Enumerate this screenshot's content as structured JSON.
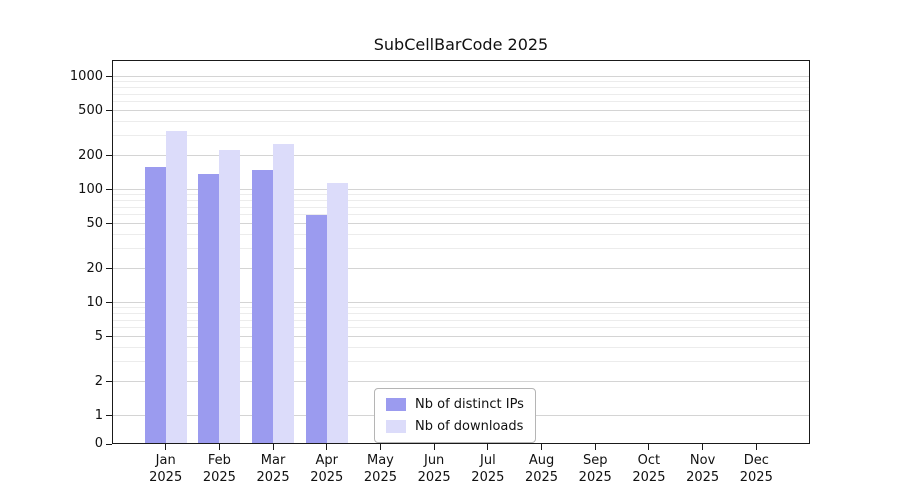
{
  "figure": {
    "title": "SubCellBarCode 2025"
  },
  "chart_data": {
    "type": "bar",
    "title": "SubCellBarCode 2025",
    "categories": [
      "Jan",
      "Feb",
      "Mar",
      "Apr",
      "May",
      "Jun",
      "Jul",
      "Aug",
      "Sep",
      "Oct",
      "Nov",
      "Dec"
    ],
    "x_tick_line2": "2025",
    "series": [
      {
        "name": "Nb of distinct IPs",
        "color": "#9b9bef",
        "values": [
          160,
          138,
          150,
          60,
          0,
          0,
          0,
          0,
          0,
          0,
          0,
          0
        ]
      },
      {
        "name": "Nb of downloads",
        "color": "#dcdcfa",
        "values": [
          330,
          225,
          255,
          115,
          0,
          0,
          0,
          0,
          0,
          0,
          0,
          0
        ]
      }
    ],
    "yscale": "symlog",
    "yticks": [
      0,
      1,
      2,
      5,
      10,
      20,
      50,
      100,
      200,
      500,
      1000
    ],
    "y_minor_ticks": [
      3,
      4,
      6,
      7,
      8,
      9,
      30,
      40,
      60,
      70,
      80,
      90,
      300,
      400,
      600,
      700,
      800,
      900
    ],
    "ylim": [
      0,
      1400
    ],
    "xlabel": "",
    "ylabel": "",
    "grid": "horizontal",
    "legend": {
      "position": "lower-center",
      "entries": [
        "Nb of distinct IPs",
        "Nb of downloads"
      ]
    }
  }
}
